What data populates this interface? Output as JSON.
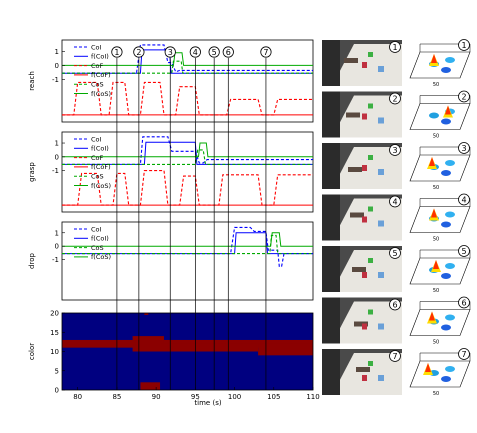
{
  "chart_data": [
    {
      "type": "line",
      "id": "reach",
      "ylabel": "reach",
      "yticks": [
        "1",
        "0",
        "-1"
      ],
      "legend": [
        "CoI",
        "f(CoI)",
        "CoF",
        "f(CoF)",
        "CoS",
        "f(CoS)"
      ],
      "series": [
        {
          "name": "CoI",
          "color": "#0000ff",
          "dash": "3,2",
          "points": [
            [
              78,
              -0.55
            ],
            [
              87.5,
              -0.55
            ],
            [
              88,
              1.45
            ],
            [
              91,
              1.45
            ],
            [
              91.5,
              0.2
            ],
            [
              92,
              0.2
            ],
            [
              92.5,
              -0.45
            ],
            [
              93,
              -0.35
            ],
            [
              110,
              -0.35
            ]
          ]
        },
        {
          "name": "f(CoI)",
          "color": "#0000ff",
          "dash": "",
          "points": [
            [
              78,
              -0.55
            ],
            [
              88,
              -0.55
            ],
            [
              88.2,
              1.1
            ],
            [
              91.7,
              1.1
            ],
            [
              91.9,
              -0.55
            ],
            [
              110,
              -0.55
            ]
          ]
        },
        {
          "name": "CoF",
          "color": "#ff0000",
          "dash": "3,2",
          "points": [
            [
              78,
              -3.5
            ],
            [
              79.5,
              -3.5
            ],
            [
              80,
              -1.2
            ],
            [
              82.5,
              -1.2
            ],
            [
              83,
              -3.5
            ],
            [
              84,
              -3.5
            ],
            [
              84.5,
              -1.2
            ],
            [
              86,
              -1.2
            ],
            [
              86.5,
              -3.5
            ],
            [
              88,
              -3.5
            ],
            [
              88.5,
              -1.2
            ],
            [
              90.5,
              -1.2
            ],
            [
              91,
              -3.5
            ],
            [
              92.5,
              -3.5
            ],
            [
              93,
              -1.5
            ],
            [
              95,
              -1.5
            ],
            [
              95.5,
              -3.5
            ],
            [
              99,
              -3.5
            ],
            [
              99.5,
              -2.4
            ],
            [
              103,
              -2.4
            ],
            [
              103.5,
              -3.5
            ],
            [
              105,
              -3.5
            ],
            [
              105.5,
              -2.4
            ],
            [
              110,
              -2.4
            ]
          ]
        },
        {
          "name": "f(CoF)",
          "color": "#ff0000",
          "dash": "",
          "points": [
            [
              78,
              -3.5
            ],
            [
              110,
              -3.5
            ]
          ]
        },
        {
          "name": "CoS",
          "color": "#00aa00",
          "dash": "3,2",
          "points": [
            [
              78,
              -0.55
            ],
            [
              92,
              -0.55
            ],
            [
              92.2,
              0.3
            ],
            [
              93.2,
              0.3
            ],
            [
              93.4,
              -0.55
            ],
            [
              110,
              -0.55
            ]
          ]
        },
        {
          "name": "f(CoS)",
          "color": "#00aa00",
          "dash": "",
          "points": [
            [
              78,
              0
            ],
            [
              92.2,
              0
            ],
            [
              92.4,
              0.9
            ],
            [
              93.3,
              0.9
            ],
            [
              93.5,
              0
            ],
            [
              110,
              0
            ]
          ]
        }
      ]
    },
    {
      "type": "line",
      "id": "grasp",
      "ylabel": "grasp",
      "yticks": [
        "1",
        "0",
        "-1"
      ],
      "legend": [
        "CoI",
        "f(CoI)",
        "CoF",
        "f(CoF)",
        "CoS",
        "f(CoS)"
      ],
      "series": [
        {
          "name": "CoI",
          "color": "#0000ff",
          "dash": "3,2",
          "points": [
            [
              78,
              -0.55
            ],
            [
              88,
              -0.55
            ],
            [
              88.3,
              1.45
            ],
            [
              91.5,
              1.45
            ],
            [
              92,
              0.4
            ],
            [
              95,
              0.4
            ],
            [
              95.5,
              -0.45
            ],
            [
              96,
              -0.45
            ],
            [
              96.5,
              -0.2
            ],
            [
              110,
              -0.2
            ]
          ]
        },
        {
          "name": "f(CoI)",
          "color": "#0000ff",
          "dash": "",
          "points": [
            [
              78,
              -0.55
            ],
            [
              88.5,
              -0.55
            ],
            [
              88.7,
              1.05
            ],
            [
              95,
              1.05
            ],
            [
              95.2,
              -0.55
            ],
            [
              110,
              -0.55
            ]
          ]
        },
        {
          "name": "CoF",
          "color": "#ff0000",
          "dash": "3,2",
          "points": [
            [
              78,
              -3.5
            ],
            [
              80,
              -3.5
            ],
            [
              80.5,
              -1.2
            ],
            [
              82.5,
              -1.2
            ],
            [
              83,
              -3.5
            ],
            [
              84.5,
              -3.5
            ],
            [
              85,
              -1.2
            ],
            [
              86,
              -1.2
            ],
            [
              86.5,
              -3.5
            ],
            [
              88,
              -3.5
            ],
            [
              88.5,
              -1.0
            ],
            [
              91,
              -1.0
            ],
            [
              91.5,
              -3.5
            ],
            [
              93,
              -3.5
            ],
            [
              93.5,
              -1.4
            ],
            [
              95,
              -1.4
            ],
            [
              95.5,
              -3.5
            ],
            [
              98,
              -3.5
            ],
            [
              98.5,
              -1.3
            ],
            [
              103,
              -1.3
            ],
            [
              103.5,
              -3.5
            ],
            [
              105,
              -3.5
            ],
            [
              105.5,
              -1.3
            ],
            [
              110,
              -1.3
            ]
          ]
        },
        {
          "name": "f(CoF)",
          "color": "#ff0000",
          "dash": "",
          "points": [
            [
              78,
              -3.5
            ],
            [
              110,
              -3.5
            ]
          ]
        },
        {
          "name": "CoS",
          "color": "#00aa00",
          "dash": "3,2",
          "points": [
            [
              78,
              -0.55
            ],
            [
              95,
              -0.55
            ],
            [
              95.3,
              0.5
            ],
            [
              96,
              0.5
            ],
            [
              96.3,
              -0.55
            ],
            [
              110,
              -0.55
            ]
          ]
        },
        {
          "name": "f(CoS)",
          "color": "#00aa00",
          "dash": "",
          "points": [
            [
              78,
              0
            ],
            [
              95.4,
              0
            ],
            [
              95.6,
              1.0
            ],
            [
              96.4,
              1.0
            ],
            [
              96.6,
              0
            ],
            [
              110,
              0
            ]
          ]
        }
      ]
    },
    {
      "type": "line",
      "id": "drop",
      "ylabel": "drop",
      "yticks": [
        "1",
        "0",
        "-1"
      ],
      "legend": [
        "CoI",
        "f(CoI)",
        "CoS",
        "f(CoS)"
      ],
      "series": [
        {
          "name": "CoI",
          "color": "#0000ff",
          "dash": "3,2",
          "points": [
            [
              78,
              -0.55
            ],
            [
              99.5,
              -0.55
            ],
            [
              100,
              1.4
            ],
            [
              102,
              1.4
            ],
            [
              102.5,
              1.1
            ],
            [
              104,
              1.1
            ],
            [
              104.3,
              -0.3
            ],
            [
              105.5,
              -0.3
            ],
            [
              105.7,
              -1.5
            ],
            [
              106,
              -1.5
            ],
            [
              106.3,
              -0.55
            ],
            [
              110,
              -0.55
            ]
          ]
        },
        {
          "name": "f(CoI)",
          "color": "#0000ff",
          "dash": "",
          "points": [
            [
              78,
              -0.55
            ],
            [
              100,
              -0.55
            ],
            [
              100.2,
              1.0
            ],
            [
              104,
              1.0
            ],
            [
              104.2,
              -0.55
            ],
            [
              110,
              -0.55
            ]
          ]
        },
        {
          "name": "CoS",
          "color": "#00aa00",
          "dash": "3,2",
          "points": [
            [
              78,
              -0.55
            ],
            [
              104.5,
              -0.55
            ],
            [
              104.7,
              0.8
            ],
            [
              105.3,
              0.8
            ],
            [
              105.5,
              -0.55
            ],
            [
              110,
              -0.55
            ]
          ]
        },
        {
          "name": "f(CoS)",
          "color": "#00aa00",
          "dash": "",
          "points": [
            [
              78,
              0
            ],
            [
              104.6,
              0
            ],
            [
              104.8,
              1.0
            ],
            [
              105.7,
              1.0
            ],
            [
              105.9,
              0
            ],
            [
              110,
              0
            ]
          ]
        }
      ]
    },
    {
      "type": "heatmap",
      "id": "color",
      "ylabel": "color",
      "xlabel": "time (s)",
      "xlim": [
        78,
        110
      ],
      "ylim": [
        0,
        20
      ],
      "xticks": [
        "80",
        "85",
        "90",
        "95",
        "100",
        "105",
        "110"
      ],
      "yticks": [
        "20",
        "15",
        "10",
        "5",
        "0"
      ],
      "background": "#000080",
      "active_color": "#8b0000",
      "bands": [
        {
          "x0": 78,
          "x1": 110,
          "y0": 11,
          "y1": 13
        },
        {
          "x0": 87,
          "x1": 91,
          "y0": 10,
          "y1": 14
        },
        {
          "x0": 90.5,
          "x1": 103,
          "y0": 10,
          "y1": 12
        },
        {
          "x0": 103,
          "x1": 110,
          "y0": 9,
          "y1": 12
        },
        {
          "x0": 88,
          "x1": 90.5,
          "y0": 0,
          "y1": 2
        },
        {
          "x0": 88.5,
          "x1": 89,
          "y0": 19.5,
          "y1": 20
        }
      ]
    }
  ],
  "event_markers": [
    {
      "label": "1",
      "t": 85
    },
    {
      "label": "2",
      "t": 87.8
    },
    {
      "label": "3",
      "t": 91.8
    },
    {
      "label": "4",
      "t": 95
    },
    {
      "label": "5",
      "t": 97.4
    },
    {
      "label": "6",
      "t": 99.2
    },
    {
      "label": "7",
      "t": 104
    }
  ],
  "snapshots": [
    {
      "label": "1"
    },
    {
      "label": "2"
    },
    {
      "label": "3"
    },
    {
      "label": "4"
    },
    {
      "label": "5"
    },
    {
      "label": "6"
    },
    {
      "label": "7"
    }
  ],
  "surface_axis_label": "50"
}
